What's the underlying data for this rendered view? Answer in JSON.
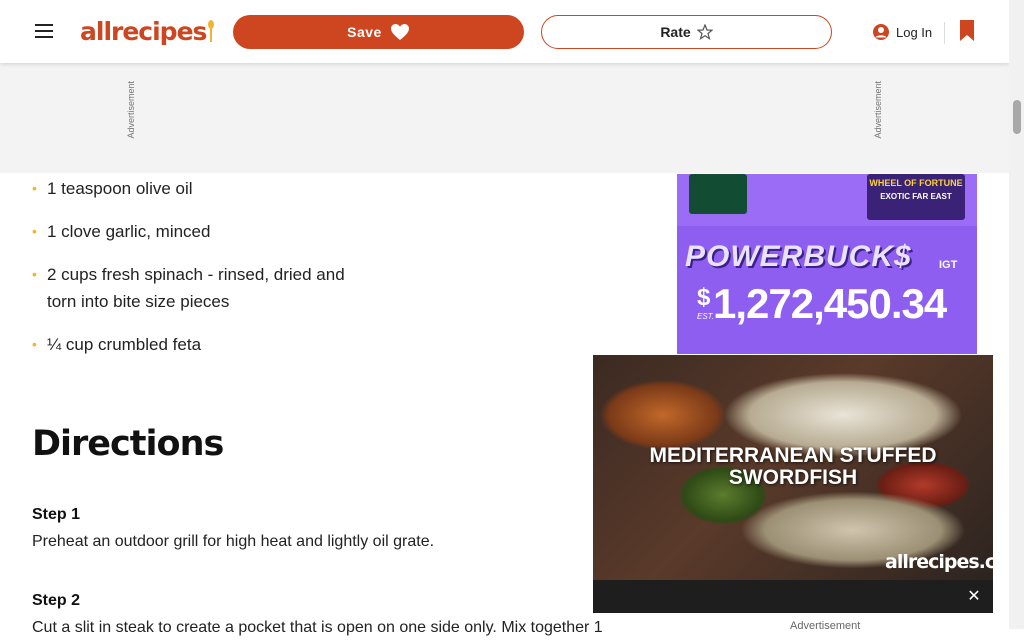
{
  "header": {
    "logo_text": "allrecipes",
    "save_label": "Save",
    "rate_label": "Rate",
    "login_label": "Log In",
    "icons": {
      "menu": "hamburger-menu-icon",
      "save": "heart-icon",
      "rate": "star-icon",
      "login": "user-icon",
      "cart": "bookmark-icon"
    },
    "colors": {
      "brand": "#ce4620",
      "logo_spoon": "#f3b233"
    }
  },
  "ad_banner": {
    "label": "Advertisement"
  },
  "ingredients": [
    "1 teaspoon olive oil",
    "1 clove garlic, minced",
    "2 cups fresh spinach - rinsed, dried and torn into bite size pieces",
    "¼ cup crumbled feta"
  ],
  "directions": {
    "title": "Directions",
    "steps": [
      {
        "label": "Step 1",
        "text": "Preheat an outdoor grill for high heat and lightly oil grate."
      },
      {
        "label": "Step 2",
        "text": "Cut a slit in steak to create a pocket that is open on one side only. Mix together 1"
      }
    ]
  },
  "side_ad": {
    "tile_title": "WHEEL OF FORTUNE",
    "tile_subtitle": "EXOTIC FAR EAST",
    "brand": "POWERBUCK$",
    "brand_suffix": "IGT",
    "currency": "$",
    "est_label": "EST.",
    "amount": "1,272,450.34"
  },
  "video": {
    "title": "MEDITERRANEAN STUFFED SWORDFISH",
    "logo": "allrecipes.com",
    "close_symbol": "✕",
    "ad_label": "Advertisement"
  }
}
